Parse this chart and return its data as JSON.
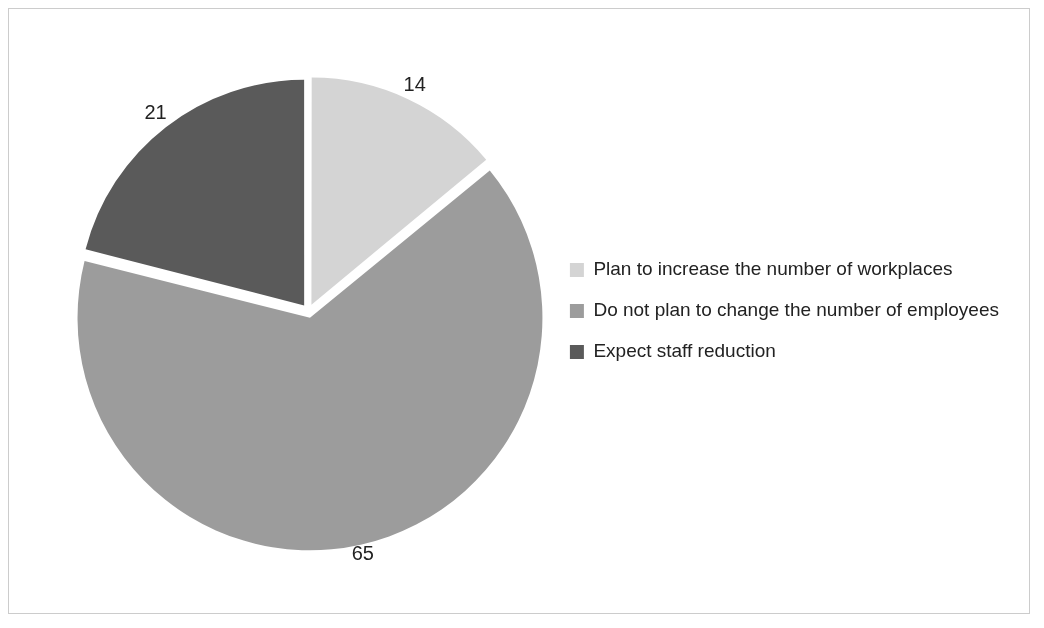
{
  "chart_data": {
    "type": "pie",
    "categories": [
      "Plan to increase the number of workplaces",
      "Do not plan to change the number of employees",
      "Expect staff reduction"
    ],
    "values": [
      14,
      65,
      21
    ],
    "colors": [
      "#d4d4d4",
      "#9c9c9c",
      "#5a5a5a"
    ],
    "data_labels": true,
    "legend": "right"
  }
}
